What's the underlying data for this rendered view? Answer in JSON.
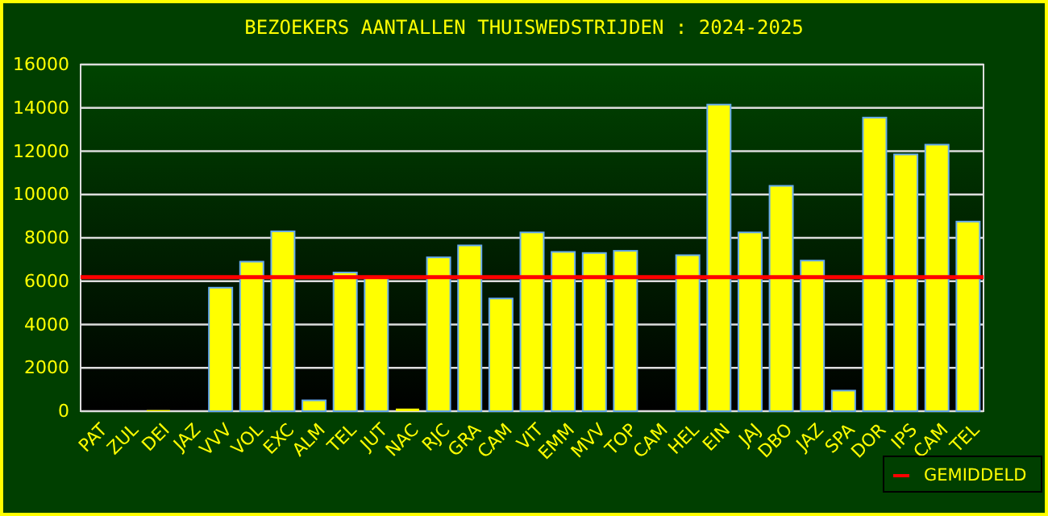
{
  "chart_data": {
    "type": "bar",
    "title": "BEZOEKERS AANTALLEN THUISWEDSTRIJDEN : 2024-2025",
    "categories": [
      "PAT",
      "ZUL",
      "DEI",
      "JAZ",
      "VVV",
      "VOL",
      "EXC",
      "ALM",
      "TEL",
      "JUT",
      "NAC",
      "RJC",
      "GRA",
      "CAM",
      "VIT",
      "EMM",
      "MVV",
      "TOP",
      "CAM",
      "HEL",
      "EIN",
      "JAJ",
      "DBO",
      "JAZ",
      "SPA",
      "DOR",
      "IPS",
      "CAM",
      "TEL"
    ],
    "values": [
      0,
      0,
      50,
      0,
      5700,
      6900,
      8300,
      500,
      6400,
      6200,
      120,
      7100,
      7650,
      5200,
      8250,
      7350,
      7300,
      7400,
      0,
      7200,
      14150,
      8250,
      10400,
      6950,
      950,
      13550,
      11850,
      12300,
      8750
    ],
    "color": "#ffff00",
    "ylim": [
      0,
      16000
    ],
    "yticks": [
      0,
      2000,
      4000,
      6000,
      8000,
      10000,
      12000,
      14000,
      16000
    ],
    "grid": "y",
    "ref_lines": [
      {
        "axis": "y",
        "value": 6190,
        "label": "GEMIDDELD",
        "color": "#ff0000"
      }
    ],
    "legend": "bottom right"
  }
}
